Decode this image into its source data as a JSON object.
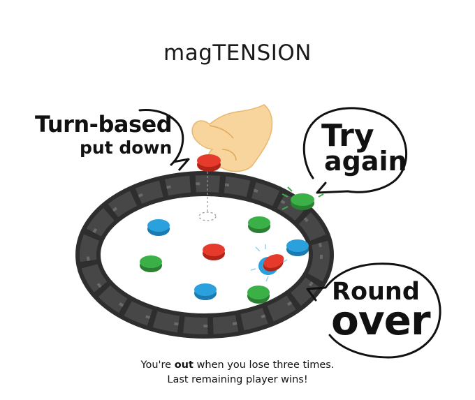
{
  "title": "magTENSION",
  "callouts": {
    "turn_based": {
      "line1": "Turn-based",
      "line2": "put down"
    },
    "try_again": {
      "line1": "Try",
      "line2": "again"
    },
    "round_over": {
      "line1": "Round",
      "line2": "over"
    }
  },
  "footer": {
    "line1_before": "You're ",
    "line1_bold": "out",
    "line1_after": " when you lose three times.",
    "line2": "Last remaining player wins!"
  },
  "colors": {
    "ring": "#3a3a3a",
    "red_disc": "#e5392b",
    "blue_disc": "#2a9fd8",
    "green_disc": "#3aa843",
    "hand": "#f6cf93"
  }
}
